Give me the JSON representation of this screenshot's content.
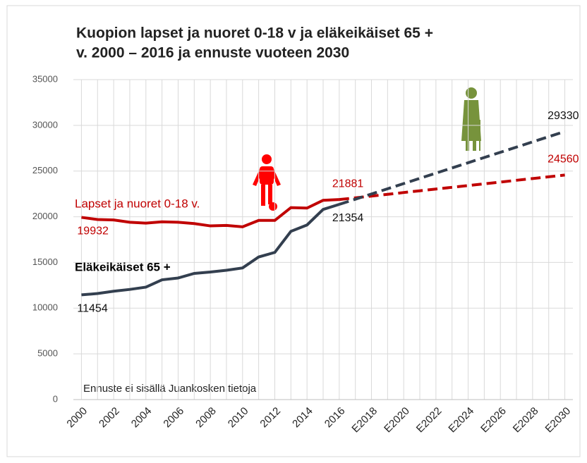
{
  "chart_data": {
    "type": "line",
    "title": [
      "Kuopion lapset ja nuoret 0-18 v ja eläkeikäiset 65 +",
      "v. 2000 – 2016 ja ennuste vuoteen 2030"
    ],
    "categories": [
      "2000",
      null,
      "2002",
      null,
      "2004",
      null,
      "2006",
      null,
      "2008",
      null,
      "2010",
      null,
      "2012",
      null,
      "2014",
      null,
      "2016",
      null,
      "E2018",
      null,
      "E2020",
      null,
      "E2022",
      null,
      "E2024",
      null,
      "E2026",
      null,
      "E2028",
      null,
      "E2030"
    ],
    "series": [
      {
        "name": "Lapset ja nuoret 0-18 v.",
        "color": "#c00000",
        "style": "solid",
        "values": [
          19932,
          19700,
          19650,
          19400,
          19300,
          19450,
          19400,
          19250,
          19000,
          19050,
          18900,
          19600,
          19600,
          21000,
          20950,
          21800,
          21881,
          null,
          null,
          null,
          null,
          null,
          null,
          null,
          null,
          null,
          null,
          null,
          null,
          null,
          null
        ],
        "value_labels": [
          "19932",
          null,
          null,
          null,
          null,
          null,
          null,
          null,
          null,
          null,
          null,
          null,
          null,
          null,
          null,
          null,
          "21881",
          null,
          null,
          null,
          null,
          null,
          null,
          null,
          null,
          null,
          null,
          null,
          null,
          null,
          null
        ]
      },
      {
        "color": "#c00000",
        "style": "dashed",
        "values": [
          null,
          null,
          null,
          null,
          null,
          null,
          null,
          null,
          null,
          null,
          null,
          null,
          null,
          null,
          null,
          null,
          21881,
          22070,
          22260,
          22450,
          22650,
          22840,
          23030,
          23220,
          23410,
          23600,
          23790,
          23990,
          24180,
          24370,
          24560
        ],
        "value_labels": [
          null,
          null,
          null,
          null,
          null,
          null,
          null,
          null,
          null,
          null,
          null,
          null,
          null,
          null,
          null,
          null,
          null,
          null,
          null,
          null,
          null,
          null,
          null,
          null,
          null,
          null,
          null,
          null,
          null,
          null,
          "24560"
        ]
      },
      {
        "name": "Eläkeikäiset 65 +",
        "color": "#333f4f",
        "style": "solid",
        "values": [
          11454,
          11600,
          11850,
          12050,
          12300,
          13100,
          13300,
          13800,
          13950,
          14150,
          14400,
          15600,
          16100,
          18400,
          19100,
          20800,
          21354,
          null,
          null,
          null,
          null,
          null,
          null,
          null,
          null,
          null,
          null,
          null,
          null,
          null,
          null
        ],
        "value_labels": [
          "11454",
          null,
          null,
          null,
          null,
          null,
          null,
          null,
          null,
          null,
          null,
          null,
          null,
          null,
          null,
          null,
          "21354",
          null,
          null,
          null,
          null,
          null,
          null,
          null,
          null,
          null,
          null,
          null,
          null,
          null,
          null
        ]
      },
      {
        "color": "#333f4f",
        "style": "dashed",
        "values": [
          null,
          null,
          null,
          null,
          null,
          null,
          null,
          null,
          null,
          null,
          null,
          null,
          null,
          null,
          null,
          null,
          21354,
          21920,
          22490,
          23060,
          23630,
          24200,
          24770,
          25340,
          25910,
          26480,
          27050,
          27620,
          28190,
          28760,
          29330
        ],
        "value_labels": [
          null,
          null,
          null,
          null,
          null,
          null,
          null,
          null,
          null,
          null,
          null,
          null,
          null,
          null,
          null,
          null,
          null,
          null,
          null,
          null,
          null,
          null,
          null,
          null,
          null,
          null,
          null,
          null,
          null,
          null,
          "29330"
        ]
      }
    ],
    "ylim": [
      0,
      35000
    ],
    "yticks": [
      0,
      5000,
      10000,
      15000,
      20000,
      25000,
      30000,
      35000
    ],
    "grid": true,
    "annotation": "Ennuste ei sisällä Juankosken tietoja"
  }
}
